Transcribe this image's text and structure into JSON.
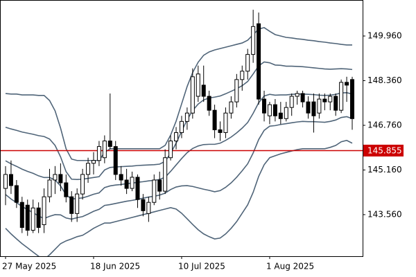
{
  "chart_data": {
    "type": "candlestick",
    "categories": [
      "27 May 2025",
      null,
      null,
      null,
      null,
      null,
      null,
      null,
      null,
      null,
      null,
      null,
      null,
      null,
      null,
      null,
      "18 Jun 2025",
      null,
      null,
      null,
      null,
      null,
      null,
      null,
      null,
      null,
      null,
      null,
      null,
      null,
      null,
      null,
      "10 Jul 2025",
      null,
      null,
      null,
      null,
      null,
      null,
      null,
      null,
      null,
      null,
      null,
      null,
      null,
      null,
      null,
      "1 Aug 2025",
      null,
      null,
      null,
      null,
      null,
      null,
      null,
      null,
      null,
      null,
      null,
      null,
      null,
      null,
      null
    ],
    "open": [
      144.5,
      145.0,
      144.6,
      144.0,
      143.9,
      143.0,
      143.8,
      143.2,
      144.2,
      144.8,
      145.0,
      144.7,
      144.2,
      143.6,
      144.3,
      145.0,
      145.4,
      145.5,
      145.6,
      146.2,
      146.0,
      145.0,
      144.8,
      144.5,
      144.9,
      144.1,
      143.6,
      144.0,
      144.8,
      144.4,
      145.6,
      146.2,
      146.5,
      146.9,
      147.2,
      147.8,
      148.2,
      147.8,
      147.3,
      146.6,
      146.5,
      147.2,
      147.6,
      148.4,
      148.7,
      149.3,
      150.4,
      147.7,
      147.1,
      147.5,
      147.2,
      147.0,
      147.4,
      147.8,
      147.9,
      147.6,
      147.6,
      147.2,
      147.7,
      147.6,
      147.8,
      147.3,
      148.3,
      148.4
    ],
    "high": [
      145.3,
      145.5,
      144.8,
      144.2,
      144.1,
      144.1,
      144.0,
      144.5,
      145.2,
      145.3,
      145.4,
      145.0,
      144.4,
      144.5,
      145.2,
      145.6,
      145.8,
      146.2,
      146.4,
      147.9,
      146.2,
      145.3,
      145.2,
      145.1,
      145.0,
      144.3,
      144.2,
      145.0,
      145.1,
      145.9,
      146.4,
      146.7,
      147.1,
      147.4,
      148.8,
      148.9,
      148.9,
      148.0,
      147.5,
      146.9,
      147.4,
      147.8,
      148.6,
      148.9,
      149.5,
      150.9,
      150.8,
      148.0,
      147.6,
      147.7,
      147.6,
      147.6,
      147.9,
      148.0,
      148.0,
      147.8,
      147.9,
      147.9,
      147.9,
      147.9,
      147.9,
      148.4,
      148.5,
      148.5
    ],
    "low": [
      143.9,
      144.3,
      143.8,
      142.9,
      142.8,
      142.9,
      142.9,
      142.9,
      144.0,
      144.3,
      144.4,
      144.0,
      143.3,
      143.3,
      144.1,
      144.7,
      145.0,
      145.3,
      145.4,
      145.9,
      144.8,
      144.6,
      144.3,
      144.4,
      143.8,
      143.5,
      143.3,
      143.9,
      144.1,
      144.3,
      145.5,
      145.9,
      146.3,
      146.6,
      147.0,
      147.6,
      147.6,
      147.1,
      146.3,
      146.2,
      146.3,
      147.0,
      147.4,
      148.0,
      148.4,
      149.0,
      147.5,
      146.9,
      146.8,
      146.9,
      146.8,
      146.9,
      147.1,
      147.5,
      147.4,
      147.0,
      146.5,
      147.0,
      147.3,
      147.3,
      147.1,
      147.2,
      147.6,
      146.6
    ],
    "close": [
      145.0,
      144.6,
      144.0,
      143.1,
      143.0,
      143.8,
      143.1,
      144.2,
      144.8,
      145.0,
      144.7,
      144.2,
      143.6,
      144.3,
      145.0,
      145.4,
      145.5,
      146.0,
      146.2,
      146.0,
      145.0,
      144.8,
      144.5,
      144.9,
      144.1,
      143.7,
      144.0,
      144.8,
      144.4,
      145.6,
      146.2,
      146.5,
      146.9,
      147.2,
      148.5,
      148.6,
      147.8,
      147.3,
      146.6,
      146.5,
      147.2,
      147.6,
      148.4,
      148.7,
      149.3,
      150.3,
      147.7,
      147.2,
      147.5,
      147.1,
      147.0,
      147.4,
      147.8,
      147.9,
      147.6,
      147.2,
      147.1,
      147.7,
      147.6,
      147.8,
      147.3,
      148.3,
      148.2,
      147.0
    ],
    "bull_color": "#ffffff",
    "bear_color": "#000000",
    "wick_color": "#000000",
    "series": [
      {
        "color": "#4f6478",
        "values": [
          147.9,
          147.88,
          147.88,
          147.85,
          147.85,
          147.85,
          147.83,
          147.83,
          147.65,
          147.28,
          146.66,
          145.92,
          145.55,
          145.5,
          145.5,
          145.5,
          145.5,
          145.5,
          145.79,
          145.92,
          145.92,
          145.92,
          145.92,
          145.92,
          145.92,
          145.92,
          145.92,
          145.92,
          145.92,
          146.04,
          146.41,
          146.91,
          147.53,
          148.15,
          148.65,
          149.02,
          149.27,
          149.39,
          149.46,
          149.51,
          149.56,
          149.61,
          149.66,
          149.71,
          149.81,
          150.01,
          150.21,
          150.26,
          150.13,
          150.01,
          149.96,
          149.91,
          149.89,
          149.86,
          149.84,
          149.81,
          149.79,
          149.76,
          149.74,
          149.71,
          149.69,
          149.66,
          149.64,
          149.64
        ]
      },
      {
        "color": "#4f6478",
        "values": [
          146.69,
          146.63,
          146.58,
          146.52,
          146.48,
          146.44,
          146.39,
          146.36,
          146.27,
          146.04,
          145.63,
          145.1,
          144.83,
          144.82,
          144.83,
          144.86,
          144.89,
          144.92,
          145.16,
          145.25,
          145.27,
          145.28,
          145.29,
          145.3,
          145.32,
          145.33,
          145.34,
          145.35,
          145.37,
          145.47,
          145.76,
          146.12,
          146.55,
          146.96,
          147.29,
          147.52,
          147.67,
          147.74,
          147.77,
          147.81,
          147.89,
          147.98,
          148.07,
          148.18,
          148.33,
          148.6,
          148.89,
          149.03,
          149.0,
          148.92,
          148.91,
          148.88,
          148.88,
          148.87,
          148.86,
          148.84,
          148.82,
          148.8,
          148.78,
          148.77,
          148.78,
          148.79,
          148.78,
          148.76
        ]
      },
      {
        "color": "#4f6478",
        "values": [
          145.49,
          145.38,
          145.29,
          145.19,
          145.11,
          145.04,
          144.95,
          144.89,
          144.89,
          144.8,
          144.59,
          144.27,
          144.12,
          144.14,
          144.16,
          144.22,
          144.29,
          144.34,
          144.53,
          144.59,
          144.62,
          144.64,
          144.67,
          144.69,
          144.72,
          144.74,
          144.77,
          144.79,
          144.82,
          144.9,
          145.11,
          145.34,
          145.57,
          145.78,
          145.93,
          146.02,
          146.07,
          146.08,
          146.08,
          146.12,
          146.22,
          146.34,
          146.49,
          146.66,
          146.86,
          147.19,
          147.57,
          147.81,
          147.87,
          147.84,
          147.85,
          147.85,
          147.87,
          147.88,
          147.88,
          147.87,
          147.86,
          147.84,
          147.83,
          147.84,
          147.87,
          147.92,
          147.93,
          147.88
        ]
      },
      {
        "color": "#4f6478",
        "values": [
          144.28,
          144.12,
          143.99,
          143.85,
          143.74,
          143.63,
          143.51,
          143.42,
          143.5,
          143.56,
          143.55,
          143.44,
          143.4,
          143.45,
          143.49,
          143.58,
          143.68,
          143.75,
          143.89,
          143.92,
          143.96,
          144.0,
          144.04,
          144.07,
          144.11,
          144.15,
          144.19,
          144.22,
          144.26,
          144.33,
          144.46,
          144.55,
          144.59,
          144.6,
          144.57,
          144.52,
          144.47,
          144.43,
          144.38,
          144.42,
          144.54,
          144.7,
          144.9,
          145.13,
          145.38,
          145.77,
          146.25,
          146.58,
          146.73,
          146.75,
          146.79,
          146.82,
          146.85,
          146.88,
          146.9,
          146.89,
          146.89,
          146.88,
          146.87,
          146.9,
          146.95,
          147.04,
          147.07,
          147.0
        ]
      },
      {
        "color": "#4f6478",
        "values": [
          143.07,
          142.87,
          142.69,
          142.52,
          142.37,
          142.22,
          142.07,
          141.95,
          142.12,
          142.32,
          142.52,
          142.62,
          142.69,
          142.77,
          142.82,
          142.94,
          143.07,
          143.17,
          143.26,
          143.26,
          143.31,
          143.36,
          143.41,
          143.46,
          143.51,
          143.56,
          143.61,
          143.66,
          143.71,
          143.76,
          143.81,
          143.76,
          143.61,
          143.41,
          143.21,
          143.02,
          142.87,
          142.77,
          142.69,
          142.72,
          142.87,
          143.07,
          143.31,
          143.61,
          143.91,
          144.36,
          144.93,
          145.35,
          145.6,
          145.67,
          145.74,
          145.79,
          145.84,
          145.89,
          145.92,
          145.92,
          145.92,
          145.92,
          145.92,
          145.97,
          146.04,
          146.17,
          146.22,
          146.12
        ]
      }
    ],
    "hline": {
      "value": 145.855,
      "color": "#cc0000"
    },
    "ylim": [
      142.07,
      151.25
    ],
    "yticks": [
      {
        "value": 149.96,
        "label": "149.960"
      },
      {
        "value": 148.36,
        "label": "148.360"
      },
      {
        "value": 146.76,
        "label": "146.760"
      },
      {
        "value": 145.16,
        "label": "145.160"
      },
      {
        "value": 143.56,
        "label": "143.560"
      }
    ],
    "grid": false
  }
}
